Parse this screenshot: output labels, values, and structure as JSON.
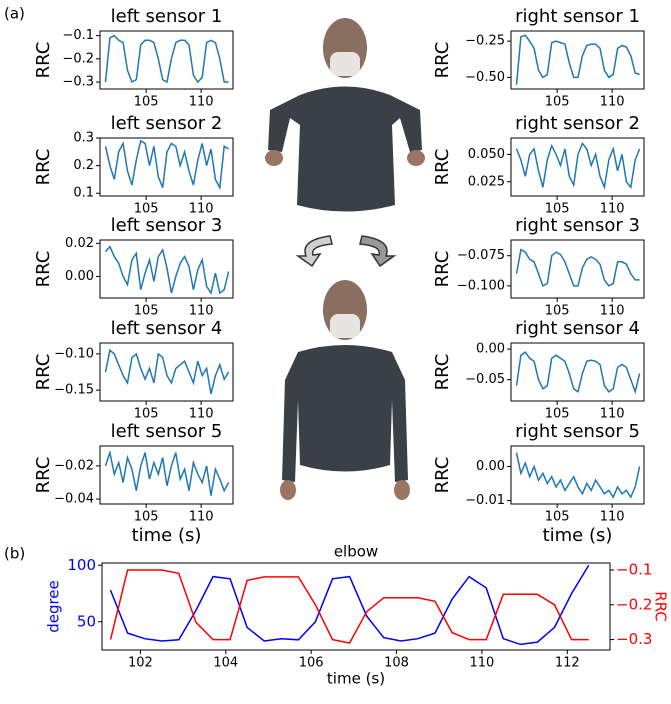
{
  "panel_labels": [
    "(a)",
    "(b)"
  ],
  "chart_data": [
    {
      "type": "line",
      "title": "left sensor 1",
      "y_label": "RRC",
      "color": "#1f77b4",
      "x": [
        101.3,
        101.7,
        102.1,
        102.5,
        102.9,
        103.3,
        103.7,
        104.1,
        104.5,
        104.9,
        105.3,
        105.7,
        106.1,
        106.5,
        106.9,
        107.3,
        107.7,
        108.1,
        108.5,
        108.9,
        109.3,
        109.7,
        110.1,
        110.5,
        110.9,
        111.3,
        111.7,
        112.1,
        112.5
      ],
      "values": [
        -0.3,
        -0.11,
        -0.1,
        -0.12,
        -0.13,
        -0.25,
        -0.3,
        -0.29,
        -0.14,
        -0.12,
        -0.12,
        -0.13,
        -0.2,
        -0.29,
        -0.3,
        -0.2,
        -0.13,
        -0.12,
        -0.12,
        -0.14,
        -0.27,
        -0.3,
        -0.28,
        -0.13,
        -0.12,
        -0.13,
        -0.2,
        -0.3,
        -0.3
      ],
      "xlim": [
        100.8,
        112.9
      ],
      "xticks": [
        105,
        110
      ],
      "ylim": [
        -0.33,
        -0.08
      ],
      "yticks": [
        {
          "value": -0.3,
          "label": "−0.3"
        },
        {
          "value": -0.2,
          "label": "−0.2"
        },
        {
          "value": -0.1,
          "label": "−0.1"
        }
      ]
    },
    {
      "type": "line",
      "title": "left sensor 2",
      "y_label": "RRC",
      "color": "#1f77b4",
      "x": [
        101.3,
        101.7,
        102.1,
        102.5,
        102.9,
        103.3,
        103.7,
        104.1,
        104.5,
        104.9,
        105.3,
        105.7,
        106.1,
        106.5,
        106.9,
        107.3,
        107.7,
        108.1,
        108.5,
        108.9,
        109.3,
        109.7,
        110.1,
        110.5,
        110.9,
        111.3,
        111.7,
        112.1,
        112.5
      ],
      "values": [
        0.27,
        0.2,
        0.15,
        0.25,
        0.28,
        0.18,
        0.13,
        0.22,
        0.29,
        0.28,
        0.2,
        0.27,
        0.16,
        0.12,
        0.25,
        0.28,
        0.27,
        0.2,
        0.25,
        0.18,
        0.13,
        0.22,
        0.28,
        0.2,
        0.26,
        0.15,
        0.12,
        0.27,
        0.26
      ],
      "xlim": [
        100.8,
        112.9
      ],
      "xticks": [
        105,
        110
      ],
      "ylim": [
        0.09,
        0.3
      ],
      "yticks": [
        0.1,
        0.2,
        0.3
      ]
    },
    {
      "type": "line",
      "title": "left sensor 3",
      "y_label": "RRC",
      "color": "#1f77b4",
      "x": [
        101.3,
        101.7,
        102.1,
        102.5,
        102.9,
        103.3,
        103.7,
        104.1,
        104.5,
        104.9,
        105.3,
        105.7,
        106.1,
        106.5,
        106.9,
        107.3,
        107.7,
        108.1,
        108.5,
        108.9,
        109.3,
        109.7,
        110.1,
        110.5,
        110.9,
        111.3,
        111.7,
        112.1,
        112.5
      ],
      "values": [
        0.015,
        0.018,
        0.012,
        0.008,
        0.0,
        -0.005,
        0.01,
        0.014,
        -0.008,
        0.002,
        0.01,
        -0.003,
        0.012,
        0.016,
        0.005,
        -0.01,
        0.0,
        0.008,
        0.012,
        0.006,
        -0.008,
        0.004,
        0.01,
        -0.006,
        -0.01,
        0.002,
        -0.01,
        -0.008,
        0.003
      ],
      "xlim": [
        100.8,
        112.9
      ],
      "xticks": [
        105,
        110
      ],
      "ylim": [
        -0.013,
        0.022
      ],
      "yticks": [
        {
          "value": 0,
          "label": "0.00"
        },
        0.02
      ]
    },
    {
      "type": "line",
      "title": "left sensor 4",
      "y_label": "RRC",
      "color": "#1f77b4",
      "x": [
        101.3,
        101.7,
        102.1,
        102.5,
        102.9,
        103.3,
        103.7,
        104.1,
        104.5,
        104.9,
        105.3,
        105.7,
        106.1,
        106.5,
        106.9,
        107.3,
        107.7,
        108.1,
        108.5,
        108.9,
        109.3,
        109.7,
        110.1,
        110.5,
        110.9,
        111.3,
        111.7,
        112.1,
        112.5
      ],
      "values": [
        -0.125,
        -0.095,
        -0.1,
        -0.115,
        -0.13,
        -0.14,
        -0.105,
        -0.1,
        -0.12,
        -0.135,
        -0.12,
        -0.14,
        -0.1,
        -0.105,
        -0.13,
        -0.14,
        -0.12,
        -0.115,
        -0.11,
        -0.125,
        -0.14,
        -0.11,
        -0.13,
        -0.12,
        -0.155,
        -0.13,
        -0.115,
        -0.135,
        -0.125
      ],
      "xlim": [
        100.8,
        112.9
      ],
      "xticks": [
        105,
        110
      ],
      "ylim": [
        -0.165,
        -0.085
      ],
      "yticks": [
        {
          "value": -0.15,
          "label": "−0.15"
        },
        {
          "value": -0.1,
          "label": "−0.10"
        }
      ]
    },
    {
      "type": "line",
      "title": "left sensor 5",
      "y_label": "RRC",
      "x_label": "time (s)",
      "color": "#1f77b4",
      "x": [
        101.3,
        101.7,
        102.1,
        102.5,
        102.9,
        103.3,
        103.7,
        104.1,
        104.5,
        104.9,
        105.3,
        105.7,
        106.1,
        106.5,
        106.9,
        107.3,
        107.7,
        108.1,
        108.5,
        108.9,
        109.3,
        109.7,
        110.1,
        110.5,
        110.9,
        111.3,
        111.7,
        112.1,
        112.5
      ],
      "values": [
        -0.02,
        -0.012,
        -0.025,
        -0.018,
        -0.03,
        -0.015,
        -0.022,
        -0.035,
        -0.02,
        -0.012,
        -0.028,
        -0.018,
        -0.025,
        -0.015,
        -0.032,
        -0.02,
        -0.012,
        -0.028,
        -0.022,
        -0.035,
        -0.018,
        -0.025,
        -0.03,
        -0.02,
        -0.038,
        -0.022,
        -0.028,
        -0.035,
        -0.03
      ],
      "xlim": [
        100.8,
        112.9
      ],
      "xticks": [
        105,
        110
      ],
      "ylim": [
        -0.043,
        -0.008
      ],
      "yticks": [
        {
          "value": -0.04,
          "label": "−0.04"
        },
        {
          "value": -0.02,
          "label": "−0.02"
        }
      ]
    },
    {
      "type": "line",
      "title": "right sensor 1",
      "y_label": "RRC",
      "color": "#1f77b4",
      "x": [
        101.3,
        101.7,
        102.1,
        102.5,
        102.9,
        103.3,
        103.7,
        104.1,
        104.5,
        104.9,
        105.3,
        105.7,
        106.1,
        106.5,
        106.9,
        107.3,
        107.7,
        108.1,
        108.5,
        108.9,
        109.3,
        109.7,
        110.1,
        110.5,
        110.9,
        111.3,
        111.7,
        112.1,
        112.5
      ],
      "values": [
        -0.55,
        -0.22,
        -0.21,
        -0.25,
        -0.3,
        -0.45,
        -0.5,
        -0.48,
        -0.26,
        -0.25,
        -0.26,
        -0.27,
        -0.4,
        -0.5,
        -0.5,
        -0.35,
        -0.28,
        -0.27,
        -0.27,
        -0.3,
        -0.45,
        -0.5,
        -0.48,
        -0.3,
        -0.28,
        -0.29,
        -0.35,
        -0.47,
        -0.48
      ],
      "xlim": [
        100.8,
        112.9
      ],
      "xticks": [
        105,
        110
      ],
      "ylim": [
        -0.58,
        -0.18
      ],
      "yticks": [
        {
          "value": -0.5,
          "label": "−0.50"
        },
        {
          "value": -0.25,
          "label": "−0.25"
        }
      ]
    },
    {
      "type": "line",
      "title": "right sensor 2",
      "y_label": "RRC",
      "color": "#1f77b4",
      "x": [
        101.3,
        101.7,
        102.1,
        102.5,
        102.9,
        103.3,
        103.7,
        104.1,
        104.5,
        104.9,
        105.3,
        105.7,
        106.1,
        106.5,
        106.9,
        107.3,
        107.7,
        108.1,
        108.5,
        108.9,
        109.3,
        109.7,
        110.1,
        110.5,
        110.9,
        111.3,
        111.7,
        112.1,
        112.5
      ],
      "values": [
        0.055,
        0.045,
        0.03,
        0.05,
        0.055,
        0.035,
        0.02,
        0.045,
        0.058,
        0.05,
        0.04,
        0.055,
        0.03,
        0.022,
        0.05,
        0.06,
        0.055,
        0.04,
        0.05,
        0.03,
        0.02,
        0.045,
        0.055,
        0.035,
        0.05,
        0.025,
        0.02,
        0.045,
        0.055
      ],
      "xlim": [
        100.8,
        112.9
      ],
      "xticks": [
        105,
        110
      ],
      "ylim": [
        0.012,
        0.065
      ],
      "yticks": [
        0.025,
        {
          "value": 0.05,
          "label": "0.050"
        }
      ]
    },
    {
      "type": "line",
      "title": "right sensor 3",
      "y_label": "RRC",
      "color": "#1f77b4",
      "x": [
        101.3,
        101.7,
        102.1,
        102.5,
        102.9,
        103.3,
        103.7,
        104.1,
        104.5,
        104.9,
        105.3,
        105.7,
        106.1,
        106.5,
        106.9,
        107.3,
        107.7,
        108.1,
        108.5,
        108.9,
        109.3,
        109.7,
        110.1,
        110.5,
        110.9,
        111.3,
        111.7,
        112.1,
        112.5
      ],
      "values": [
        -0.09,
        -0.07,
        -0.072,
        -0.078,
        -0.08,
        -0.09,
        -0.1,
        -0.098,
        -0.075,
        -0.072,
        -0.074,
        -0.08,
        -0.09,
        -0.1,
        -0.1,
        -0.085,
        -0.078,
        -0.076,
        -0.078,
        -0.082,
        -0.095,
        -0.1,
        -0.098,
        -0.08,
        -0.08,
        -0.082,
        -0.09,
        -0.095,
        -0.095
      ],
      "xlim": [
        100.8,
        112.9
      ],
      "xticks": [
        105,
        110
      ],
      "ylim": [
        -0.11,
        -0.062
      ],
      "yticks": [
        {
          "value": -0.1,
          "label": "−0.100"
        },
        {
          "value": -0.075,
          "label": "−0.075"
        }
      ]
    },
    {
      "type": "line",
      "title": "right sensor 4",
      "y_label": "RRC",
      "color": "#1f77b4",
      "x": [
        101.3,
        101.7,
        102.1,
        102.5,
        102.9,
        103.3,
        103.7,
        104.1,
        104.5,
        104.9,
        105.3,
        105.7,
        106.1,
        106.5,
        106.9,
        107.3,
        107.7,
        108.1,
        108.5,
        108.9,
        109.3,
        109.7,
        110.1,
        110.5,
        110.9,
        111.3,
        111.7,
        112.1,
        112.5
      ],
      "values": [
        -0.06,
        -0.01,
        -0.005,
        -0.015,
        -0.02,
        -0.05,
        -0.065,
        -0.06,
        -0.015,
        -0.01,
        -0.015,
        -0.02,
        -0.04,
        -0.065,
        -0.07,
        -0.04,
        -0.02,
        -0.018,
        -0.02,
        -0.025,
        -0.06,
        -0.07,
        -0.065,
        -0.03,
        -0.025,
        -0.03,
        -0.05,
        -0.07,
        -0.04
      ],
      "xlim": [
        100.8,
        112.9
      ],
      "xticks": [
        105,
        110
      ],
      "ylim": [
        -0.085,
        0.01
      ],
      "yticks": [
        {
          "value": -0.05,
          "label": "−0.05"
        },
        {
          "value": 0,
          "label": "0.00"
        }
      ]
    },
    {
      "type": "line",
      "title": "right sensor 5",
      "y_label": "RRC",
      "x_label": "time (s)",
      "color": "#1f77b4",
      "x": [
        101.3,
        101.7,
        102.1,
        102.5,
        102.9,
        103.3,
        103.7,
        104.1,
        104.5,
        104.9,
        105.3,
        105.7,
        106.1,
        106.5,
        106.9,
        107.3,
        107.7,
        108.1,
        108.5,
        108.9,
        109.3,
        109.7,
        110.1,
        110.5,
        110.9,
        111.3,
        111.7,
        112.1,
        112.5
      ],
      "values": [
        0.004,
        -0.002,
        0.001,
        -0.003,
        0.0,
        -0.004,
        -0.002,
        -0.005,
        -0.003,
        -0.006,
        -0.004,
        -0.007,
        -0.005,
        -0.003,
        -0.006,
        -0.008,
        -0.005,
        -0.007,
        -0.004,
        -0.006,
        -0.008,
        -0.007,
        -0.009,
        -0.006,
        -0.008,
        -0.007,
        -0.009,
        -0.006,
        0.0
      ],
      "xlim": [
        100.8,
        112.9
      ],
      "xticks": [
        105,
        110
      ],
      "ylim": [
        -0.011,
        0.006
      ],
      "yticks": [
        {
          "value": -0.01,
          "label": "−0.01"
        },
        {
          "value": 0,
          "label": "0.00"
        }
      ]
    },
    {
      "type": "line",
      "title": "elbow",
      "y_label": "degree",
      "y2_label": "RRC",
      "x_label": "time (s)",
      "x": [
        101.3,
        101.7,
        102.1,
        102.5,
        102.9,
        103.3,
        103.7,
        104.1,
        104.5,
        104.9,
        105.3,
        105.7,
        106.1,
        106.5,
        106.9,
        107.3,
        107.7,
        108.1,
        108.5,
        108.9,
        109.3,
        109.7,
        110.1,
        110.5,
        110.9,
        111.3,
        111.7,
        112.1,
        112.5
      ],
      "series": [
        {
          "color": "#0000ff",
          "values": [
            78,
            40,
            35,
            33,
            34,
            60,
            90,
            88,
            45,
            33,
            35,
            34,
            50,
            88,
            90,
            55,
            36,
            33,
            35,
            40,
            70,
            90,
            80,
            35,
            30,
            32,
            45,
            75,
            100
          ]
        },
        {
          "color": "#ff0000",
          "axis": "y2",
          "values": [
            -0.3,
            -0.1,
            -0.1,
            -0.1,
            -0.11,
            -0.25,
            -0.3,
            -0.3,
            -0.13,
            -0.12,
            -0.12,
            -0.12,
            -0.2,
            -0.3,
            -0.31,
            -0.22,
            -0.18,
            -0.18,
            -0.18,
            -0.19,
            -0.28,
            -0.3,
            -0.3,
            -0.17,
            -0.17,
            -0.17,
            -0.2,
            -0.3,
            -0.3
          ]
        }
      ],
      "xlim": [
        101.1,
        113.0
      ],
      "xticks": [
        102,
        104,
        106,
        108,
        110,
        112
      ],
      "ylim": [
        25,
        102
      ],
      "yticks": [
        50,
        100
      ],
      "y2lim": [
        -0.33,
        -0.08
      ],
      "y2ticks": [
        {
          "value": -0.3,
          "label": "−0.3"
        },
        {
          "value": -0.2,
          "label": "−0.2"
        },
        {
          "value": -0.1,
          "label": "−0.1"
        }
      ]
    }
  ]
}
